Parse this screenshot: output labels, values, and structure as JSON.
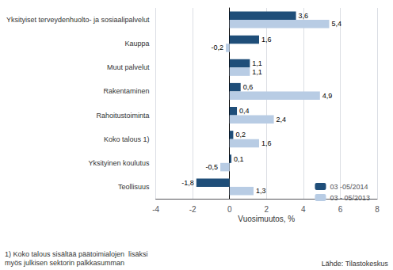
{
  "chart_data": {
    "type": "bar",
    "orientation": "horizontal",
    "categories": [
      "Yksityiset terveydenhuolto- ja sosiaalipalvelut",
      "Kauppa",
      "Muut palvelut",
      "Rakentaminen",
      "Rahoitustoiminta",
      "Koko talous 1)",
      "Yksityinen koulutus",
      "Teollisuus"
    ],
    "series": [
      {
        "name": "03 -05/2014",
        "color": "#1F4E79",
        "values": [
          3.6,
          1.6,
          1.1,
          0.6,
          0.4,
          0.2,
          0.1,
          -1.8
        ],
        "value_labels": [
          "3,6",
          "1,6",
          "1,1",
          "0,6",
          "0,4",
          "0,2",
          "0,1",
          "-1,8"
        ]
      },
      {
        "name": "03 - 05/2013",
        "color": "#B8CCE4",
        "values": [
          5.4,
          -0.2,
          1.1,
          4.9,
          2.4,
          1.6,
          -0.5,
          1.3
        ],
        "value_labels": [
          "5,4",
          "-0,2",
          "1,1",
          "4,9",
          "2,4",
          "1,6",
          "-0,5",
          "1,3"
        ]
      }
    ],
    "xlabel": "Vuosimuutos, %",
    "xlim": [
      -4,
      8
    ],
    "xticks": [
      -4,
      -2,
      0,
      2,
      4,
      6,
      8
    ],
    "grid": true,
    "legend": "lower right",
    "data_labels": true,
    "annotations": [
      "1) Koko talous sisältää päätoimialojen  lisäksi\nmyös julkisen sektorin palkkasumman",
      "Lähde: Tilastokeskus"
    ]
  }
}
